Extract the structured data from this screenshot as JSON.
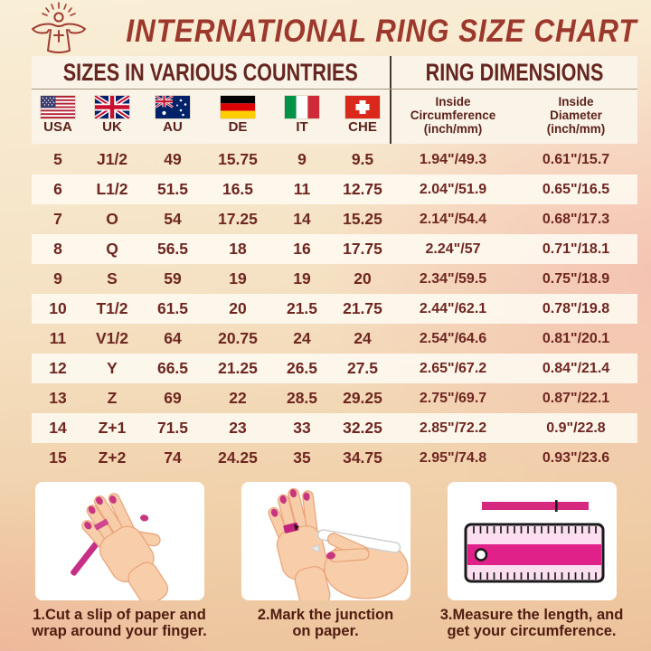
{
  "header": {
    "title": "INTERNATIONAL RING SIZE CHART",
    "logo": "jesus-figure-logo"
  },
  "table": {
    "section_titles": {
      "left": "SIZES IN VARIOUS COUNTRIES",
      "right": "RING DIMENSIONS"
    },
    "countries": [
      {
        "code": "USA",
        "flag": "us-flag"
      },
      {
        "code": "UK",
        "flag": "uk-flag"
      },
      {
        "code": "AU",
        "flag": "au-flag"
      },
      {
        "code": "DE",
        "flag": "de-flag"
      },
      {
        "code": "IT",
        "flag": "it-flag"
      },
      {
        "code": "CHE",
        "flag": "che-flag"
      }
    ],
    "dimension_headers": [
      {
        "lines": [
          "Inside",
          "Circumference",
          "(inch/mm)"
        ]
      },
      {
        "lines": [
          "Inside",
          "Diameter",
          "(inch/mm)"
        ]
      }
    ],
    "rows": [
      [
        "5",
        "J1/2",
        "49",
        "15.75",
        "9",
        "9.5",
        "1.94\"/49.3",
        "0.61\"/15.7"
      ],
      [
        "6",
        "L1/2",
        "51.5",
        "16.5",
        "11",
        "12.75",
        "2.04\"/51.9",
        "0.65\"/16.5"
      ],
      [
        "7",
        "O",
        "54",
        "17.25",
        "14",
        "15.25",
        "2.14\"/54.4",
        "0.68\"/17.3"
      ],
      [
        "8",
        "Q",
        "56.5",
        "18",
        "16",
        "17.75",
        "2.24\"/57",
        "0.71\"/18.1"
      ],
      [
        "9",
        "S",
        "59",
        "19",
        "19",
        "20",
        "2.34\"/59.5",
        "0.75\"/18.9"
      ],
      [
        "10",
        "T1/2",
        "61.5",
        "20",
        "21.5",
        "21.75",
        "2.44\"/62.1",
        "0.78\"/19.8"
      ],
      [
        "11",
        "V1/2",
        "64",
        "20.75",
        "24",
        "24",
        "2.54\"/64.6",
        "0.81\"/20.1"
      ],
      [
        "12",
        "Y",
        "66.5",
        "21.25",
        "26.5",
        "27.5",
        "2.65\"/67.2",
        "0.84\"/21.4"
      ],
      [
        "13",
        "Z",
        "69",
        "22",
        "28.5",
        "29.25",
        "2.75\"/69.7",
        "0.87\"/22.1"
      ],
      [
        "14",
        "Z+1",
        "71.5",
        "23",
        "33",
        "32.25",
        "2.85\"/72.2",
        "0.9\"/22.8"
      ],
      [
        "15",
        "Z+2",
        "74",
        "24.25",
        "35",
        "34.75",
        "2.95\"/74.8",
        "0.93\"/23.6"
      ]
    ]
  },
  "instructions": [
    {
      "caption": "1.Cut a slip of paper and wrap around your finger.",
      "illustration": "hand-wrapping-paper-strip"
    },
    {
      "caption": "2.Mark the junction on paper.",
      "illustration": "pen-marking-junction"
    },
    {
      "caption": "3.Measure the length, and get your circumference.",
      "illustration": "ruler-measuring-strip"
    }
  ],
  "colors": {
    "title_text": "#9c382c",
    "table_text": "#6e2620",
    "panel_cream": "#faf3e7",
    "row_stripe": "#fdf9ef",
    "divider": "#463930",
    "accent_pink": "#e0218a",
    "nail_magenta": "#c9357f",
    "skin": "#f8cda9"
  }
}
